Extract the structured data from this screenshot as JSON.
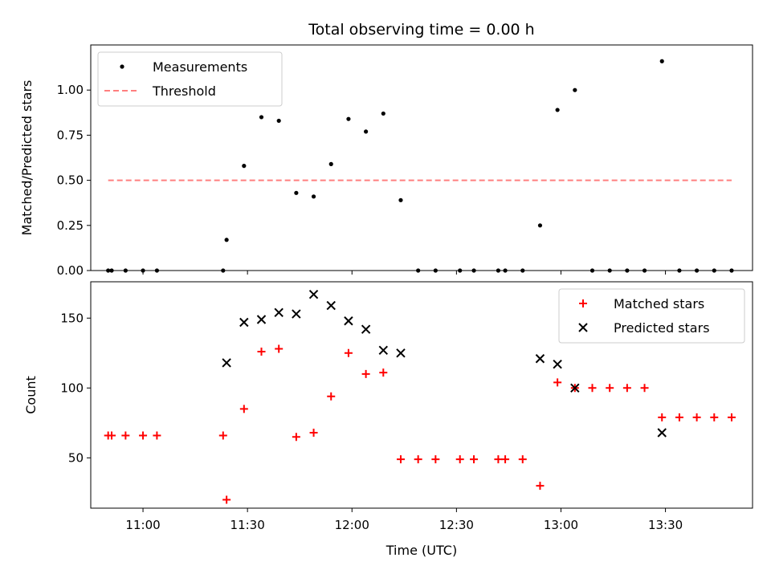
{
  "title": "Total observing time = 0.00 h",
  "colors": {
    "measurements": "#000000",
    "threshold": "#ff7f7f",
    "matched": "#ff0000",
    "predicted": "#000000"
  },
  "chart_data": [
    {
      "type": "scatter",
      "ylabel": "Matched/Predicted stars",
      "xlim": [
        "10:45",
        "13:55"
      ],
      "ylim": [
        0,
        1.25
      ],
      "y_ticks": [
        "0.00",
        "0.25",
        "0.50",
        "0.75",
        "1.00"
      ],
      "legend": {
        "placement": "top-left",
        "entries": [
          "Measurements",
          "Threshold"
        ]
      },
      "series": [
        {
          "name": "Measurements",
          "marker": "dot",
          "points": [
            [
              "10:50",
              0.0
            ],
            [
              "10:51",
              0.0
            ],
            [
              "10:55",
              0.0
            ],
            [
              "11:00",
              0.0
            ],
            [
              "11:04",
              0.0
            ],
            [
              "11:23",
              0.0
            ],
            [
              "11:24",
              0.17
            ],
            [
              "11:29",
              0.58
            ],
            [
              "11:34",
              0.85
            ],
            [
              "11:39",
              0.83
            ],
            [
              "11:44",
              0.43
            ],
            [
              "11:49",
              0.41
            ],
            [
              "11:54",
              0.59
            ],
            [
              "11:59",
              0.84
            ],
            [
              "12:04",
              0.77
            ],
            [
              "12:09",
              0.87
            ],
            [
              "12:14",
              0.39
            ],
            [
              "12:19",
              0.0
            ],
            [
              "12:24",
              0.0
            ],
            [
              "12:31",
              0.0
            ],
            [
              "12:35",
              0.0
            ],
            [
              "12:42",
              0.0
            ],
            [
              "12:44",
              0.0
            ],
            [
              "12:49",
              0.0
            ],
            [
              "12:54",
              0.25
            ],
            [
              "12:59",
              0.89
            ],
            [
              "13:04",
              1.0
            ],
            [
              "13:09",
              0.0
            ],
            [
              "13:14",
              0.0
            ],
            [
              "13:19",
              0.0
            ],
            [
              "13:24",
              0.0
            ],
            [
              "13:29",
              1.16
            ],
            [
              "13:34",
              0.0
            ],
            [
              "13:39",
              0.0
            ],
            [
              "13:44",
              0.0
            ],
            [
              "13:49",
              0.0
            ]
          ]
        },
        {
          "name": "Threshold",
          "marker": "dashed-line",
          "points": [
            [
              "10:50",
              0.5
            ],
            [
              "13:49",
              0.5
            ]
          ]
        }
      ]
    },
    {
      "type": "scatter",
      "xlabel": "Time (UTC)",
      "ylabel": "Count",
      "xlim": [
        "10:45",
        "13:55"
      ],
      "ylim": [
        14,
        176
      ],
      "x_ticks": [
        "11:00",
        "11:30",
        "12:00",
        "12:30",
        "13:00",
        "13:30"
      ],
      "y_ticks": [
        "50",
        "100",
        "150"
      ],
      "legend": {
        "placement": "top-right",
        "entries": [
          "Matched stars",
          "Predicted stars"
        ]
      },
      "series": [
        {
          "name": "Matched stars",
          "marker": "plus",
          "points": [
            [
              "10:50",
              66
            ],
            [
              "10:51",
              66
            ],
            [
              "10:55",
              66
            ],
            [
              "11:00",
              66
            ],
            [
              "11:04",
              66
            ],
            [
              "11:23",
              66
            ],
            [
              "11:24",
              20
            ],
            [
              "11:29",
              85
            ],
            [
              "11:34",
              126
            ],
            [
              "11:39",
              128
            ],
            [
              "11:44",
              65
            ],
            [
              "11:49",
              68
            ],
            [
              "11:54",
              94
            ],
            [
              "11:59",
              125
            ],
            [
              "12:04",
              110
            ],
            [
              "12:09",
              111
            ],
            [
              "12:14",
              49
            ],
            [
              "12:19",
              49
            ],
            [
              "12:24",
              49
            ],
            [
              "12:31",
              49
            ],
            [
              "12:35",
              49
            ],
            [
              "12:42",
              49
            ],
            [
              "12:44",
              49
            ],
            [
              "12:49",
              49
            ],
            [
              "12:54",
              30
            ],
            [
              "12:59",
              104
            ],
            [
              "13:04",
              100
            ],
            [
              "13:09",
              100
            ],
            [
              "13:14",
              100
            ],
            [
              "13:19",
              100
            ],
            [
              "13:24",
              100
            ],
            [
              "13:29",
              79
            ],
            [
              "13:34",
              79
            ],
            [
              "13:39",
              79
            ],
            [
              "13:44",
              79
            ],
            [
              "13:49",
              79
            ]
          ]
        },
        {
          "name": "Predicted stars",
          "marker": "x",
          "points": [
            [
              "11:24",
              118
            ],
            [
              "11:29",
              147
            ],
            [
              "11:34",
              149
            ],
            [
              "11:39",
              154
            ],
            [
              "11:44",
              153
            ],
            [
              "11:49",
              167
            ],
            [
              "11:54",
              159
            ],
            [
              "11:59",
              148
            ],
            [
              "12:04",
              142
            ],
            [
              "12:09",
              127
            ],
            [
              "12:14",
              125
            ],
            [
              "12:54",
              121
            ],
            [
              "12:59",
              117
            ],
            [
              "13:04",
              100
            ],
            [
              "13:29",
              68
            ]
          ]
        }
      ]
    }
  ]
}
